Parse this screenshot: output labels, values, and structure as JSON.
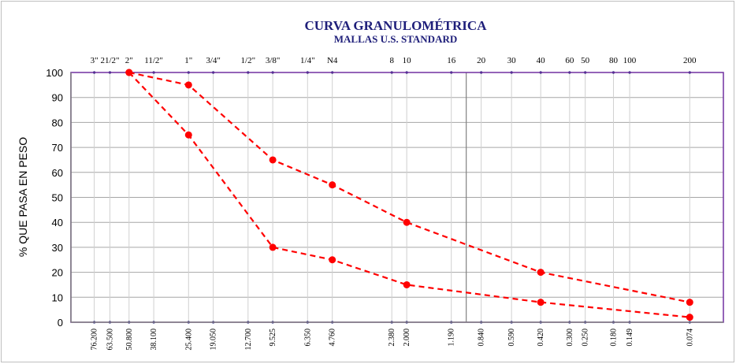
{
  "chart_data": {
    "type": "line",
    "title": "CURVA GRANULOMÉTRICA",
    "subtitle": "MALLAS U.S. STANDARD",
    "y_label": "% QUE PASA EN PESO",
    "log_x": true,
    "grid": true,
    "xlim": [
      100,
      0.05
    ],
    "ylim": [
      0,
      100
    ],
    "yticks": [
      0,
      10,
      20,
      30,
      40,
      50,
      60,
      70,
      80,
      90,
      100
    ],
    "xticks": [
      {
        "value": 76.2,
        "label": "76.200"
      },
      {
        "value": 63.5,
        "label": "63.500"
      },
      {
        "value": 50.8,
        "label": "50.800"
      },
      {
        "value": 38.1,
        "label": "38.100"
      },
      {
        "value": 25.4,
        "label": "25.400"
      },
      {
        "value": 19.05,
        "label": "19.050"
      },
      {
        "value": 12.7,
        "label": "12.700"
      },
      9.525,
      {
        "value": 6.35,
        "label": "6.350"
      },
      {
        "value": 4.76,
        "label": "4.760"
      },
      {
        "value": 2.38,
        "label": "2.380"
      },
      {
        "value": 2.0,
        "label": "2.000"
      },
      {
        "value": 1.19,
        "label": "1.190"
      },
      {
        "value": 0.84,
        "label": "0.840"
      },
      {
        "value": 0.59,
        "label": "0.590"
      },
      {
        "value": 0.42,
        "label": "0.420"
      },
      {
        "value": 0.3,
        "label": "0.300"
      },
      {
        "value": 0.25,
        "label": "0.250"
      },
      {
        "value": 0.18,
        "label": "0.180"
      },
      0.149,
      0.074
    ],
    "sieve_labels": [
      "3\"",
      "21/2\"",
      "2\"",
      "11/2\"",
      "1\"",
      "3/4\"",
      "1/2\"",
      "3/8\"",
      "1/4\"",
      "N4",
      "8",
      "10",
      "16",
      "20",
      "30",
      "40",
      "60",
      "50",
      "80",
      "100",
      "200"
    ],
    "reference_line_x": 1,
    "x": [
      50.8,
      25.4,
      9.525,
      4.76,
      2.0,
      0.42,
      0.074
    ],
    "series": [
      {
        "color": "#ff0000",
        "values": [
          100,
          95,
          65,
          55,
          40,
          20,
          8
        ]
      },
      {
        "color": "#ff0000",
        "values": [
          100,
          75,
          30,
          25,
          15,
          8,
          2
        ]
      }
    ]
  }
}
